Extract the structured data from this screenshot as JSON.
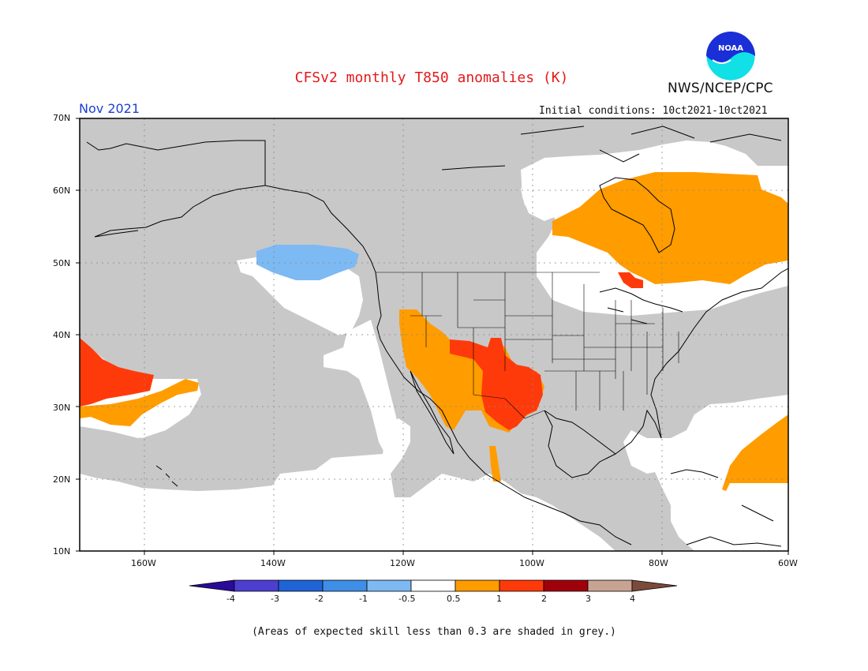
{
  "header": {
    "title": "CFSv2 monthly T850 anomalies (K)",
    "agency": "NWS/NCEP/CPC",
    "logo_text": "NOAA",
    "month": "Nov 2021",
    "initial_conditions": "Initial conditions: 10ct2021-10ct2021"
  },
  "map": {
    "projection": "lat-lon",
    "lon_range": [
      -170,
      -60
    ],
    "lat_range": [
      10,
      70
    ],
    "lat_labels": [
      "70N",
      "60N",
      "50N",
      "40N",
      "30N",
      "20N",
      "10N"
    ],
    "lon_labels": [
      "160W",
      "140W",
      "120W",
      "100W",
      "80W",
      "60W"
    ],
    "low_skill_color": "#c8c8c8",
    "regions": [
      {
        "category": "1 to 2",
        "area": "central North Pacific west of California"
      },
      {
        "category": "0.5 to 1",
        "area": "central North Pacific south of the warm core"
      },
      {
        "category": "-1 to -0.5",
        "area": "Gulf of Alaska"
      },
      {
        "category": "0.5 to 1",
        "area": "US Southwest / Great Basin"
      },
      {
        "category": "1 to 2",
        "area": "Four Corners / Southern Plains"
      },
      {
        "category": "0.5 to 1",
        "area": "eastern Canada / Hudson Bay"
      },
      {
        "category": "1 to 2",
        "area": "northern Michigan"
      },
      {
        "category": "0.5 to 1",
        "area": "western Atlantic near Caribbean"
      }
    ]
  },
  "colorbar": {
    "ticks": [
      "-4",
      "-3",
      "-2",
      "-1",
      "-0.5",
      "0.5",
      "1",
      "2",
      "3",
      "4"
    ],
    "colors": [
      "#2a0a9a",
      "#4c3fd0",
      "#1f64d6",
      "#3f8fe8",
      "#7db9f2",
      "#ffffff",
      "#ff9c00",
      "#ff3a0a",
      "#a0000a",
      "#c9a392",
      "#7a4a3a"
    ]
  },
  "footnote": "(Areas of expected skill less than 0.3 are shaded in grey.)"
}
